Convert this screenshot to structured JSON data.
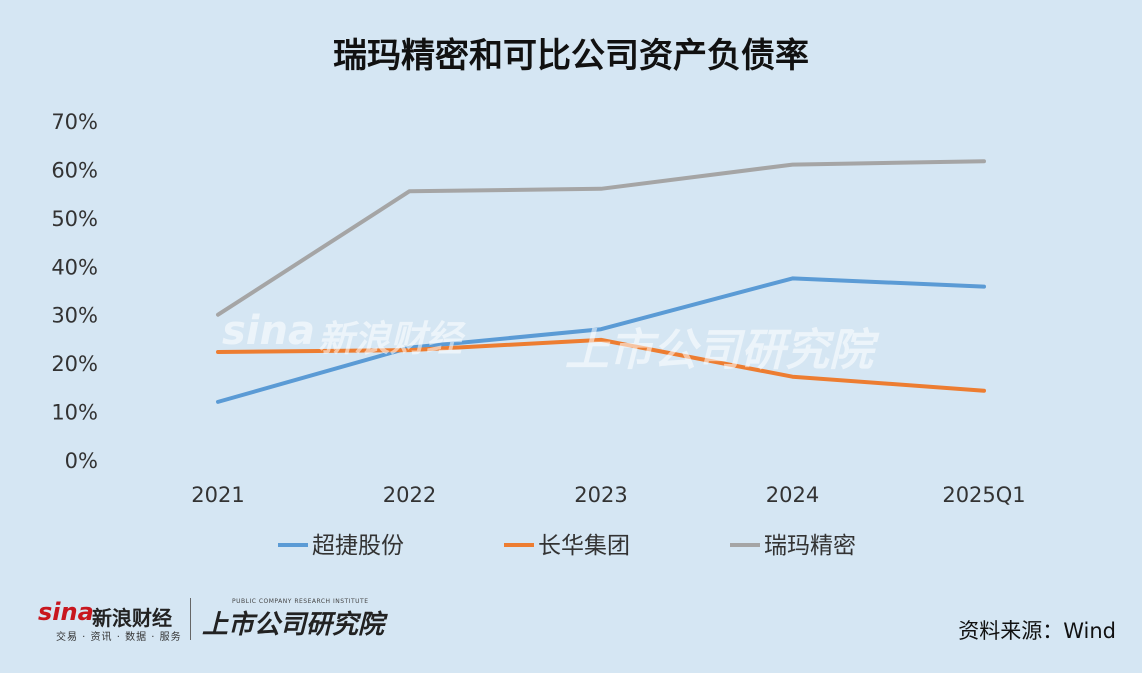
{
  "chart_data": {
    "type": "line",
    "title": "瑞玛精密和可比公司资产负债率",
    "categories": [
      "2021",
      "2022",
      "2023",
      "2024",
      "2025Q1"
    ],
    "y_ticks": [
      "0%",
      "10%",
      "20%",
      "30%",
      "40%",
      "50%",
      "60%",
      "70%"
    ],
    "ylim": [
      0,
      70
    ],
    "grid": false,
    "legend_position": "bottom",
    "series": [
      {
        "name": "超捷股份",
        "color": "#5b9bd5",
        "values": [
          12,
          23.2,
          27,
          37.5,
          35.8
        ]
      },
      {
        "name": "长华集团",
        "color": "#ed7d31",
        "values": [
          22.3,
          22.7,
          24.8,
          17.2,
          14.3
        ]
      },
      {
        "name": "瑞玛精密",
        "color": "#a5a5a5",
        "values": [
          30,
          55.5,
          56,
          61,
          61.7
        ]
      }
    ]
  },
  "source": "资料来源：Wind",
  "logos": {
    "sina": "sina",
    "sina_cn": "新浪财经",
    "sina_sub": "交易 · 资讯 · 数据 · 服务",
    "institute": "上市公司研究院",
    "institute_en": "PUBLIC COMPANY RESEARCH INSTITUTE"
  }
}
